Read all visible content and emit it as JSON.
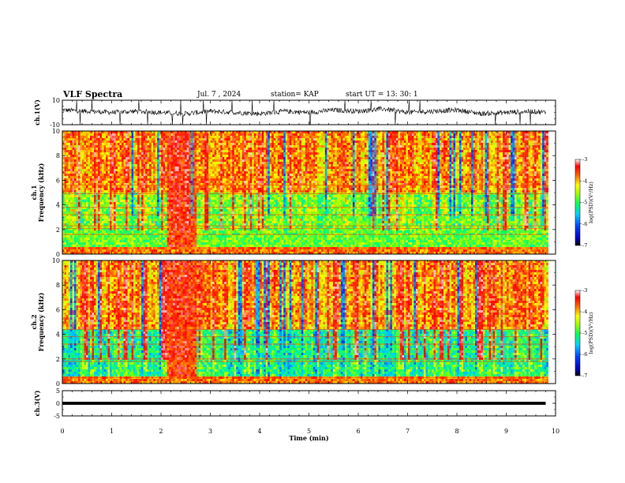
{
  "header": {
    "title": "VLF Spectra",
    "date": "Jul. 7 , 2024",
    "station": "station= KAP",
    "start": "start UT = 13: 30: 1"
  },
  "chart_data": [
    {
      "type": "line",
      "panel": "ch1-waveform",
      "ylabel": "ch.1(V)",
      "ylim": [
        -10,
        10
      ],
      "yticks": [
        "10",
        "-10"
      ],
      "description_values": {
        "x": [
          0,
          0.5,
          1,
          1.5,
          2,
          2.5,
          3,
          3.5,
          4,
          4.5,
          5,
          5.5,
          6,
          6.5,
          7,
          7.5,
          8,
          8.5,
          9,
          9.5,
          9.8
        ],
        "y": [
          2,
          1,
          0,
          1,
          0,
          -1,
          1,
          0,
          -1,
          1,
          0,
          2,
          1,
          3,
          0,
          1,
          2,
          -1,
          0,
          1,
          0
        ]
      },
      "color": "#000000"
    },
    {
      "type": "heatmap",
      "panel": "ch1-spectrogram",
      "ylabel": "ch.1\nFrequency (kHz)",
      "ylim": [
        0,
        10
      ],
      "yticks": [
        "0",
        "2",
        "4",
        "6",
        "8",
        "10"
      ],
      "colorbar": {
        "label": "log(PSD)(V²/Hz)",
        "ticks": [
          "-3",
          "-4",
          "-5",
          "-6",
          "-7"
        ],
        "range": [
          -7,
          -3
        ]
      },
      "features": {
        "broadband_burst_min": [
          2.1,
          2.7
        ],
        "dominant_low_freq_khz": [
          2,
          5
        ],
        "dominant_high_freq_khz": [
          5,
          10
        ]
      }
    },
    {
      "type": "heatmap",
      "panel": "ch2-spectrogram",
      "ylabel": "ch.2\nFrequency (kHz)",
      "ylim": [
        0,
        10
      ],
      "yticks": [
        "0",
        "2",
        "4",
        "6",
        "8",
        "10"
      ],
      "colorbar": {
        "label": "log(PSD)(V²/Hz)",
        "ticks": [
          "-3",
          "-4",
          "-5",
          "-6",
          "-7"
        ],
        "range": [
          -7,
          -3
        ]
      },
      "features": {
        "broadband_burst_min": [
          2.1,
          2.7
        ],
        "dominant_low_freq_khz": [
          0.5,
          4.5
        ],
        "dominant_high_freq_khz": [
          4.5,
          10
        ]
      }
    },
    {
      "type": "line",
      "panel": "ch3-waveform",
      "ylabel": "ch.3(V)",
      "ylim": [
        -5,
        5
      ],
      "yticks": [
        "5",
        "0",
        "-5"
      ],
      "description_values": {
        "x": [
          0,
          9.8
        ],
        "y": [
          0,
          0
        ]
      },
      "color": "#000000"
    }
  ],
  "xaxis": {
    "label": "Time (min)",
    "ticks": [
      "0",
      "1",
      "2",
      "3",
      "4",
      "5",
      "6",
      "7",
      "8",
      "9",
      "10"
    ],
    "xlim": [
      0,
      10
    ]
  },
  "colors": {
    "colormap": [
      "#000080",
      "#0000ff",
      "#00c8ff",
      "#00ff80",
      "#80ff00",
      "#ffff00",
      "#ff8000",
      "#ff0000",
      "#ffffff"
    ]
  }
}
